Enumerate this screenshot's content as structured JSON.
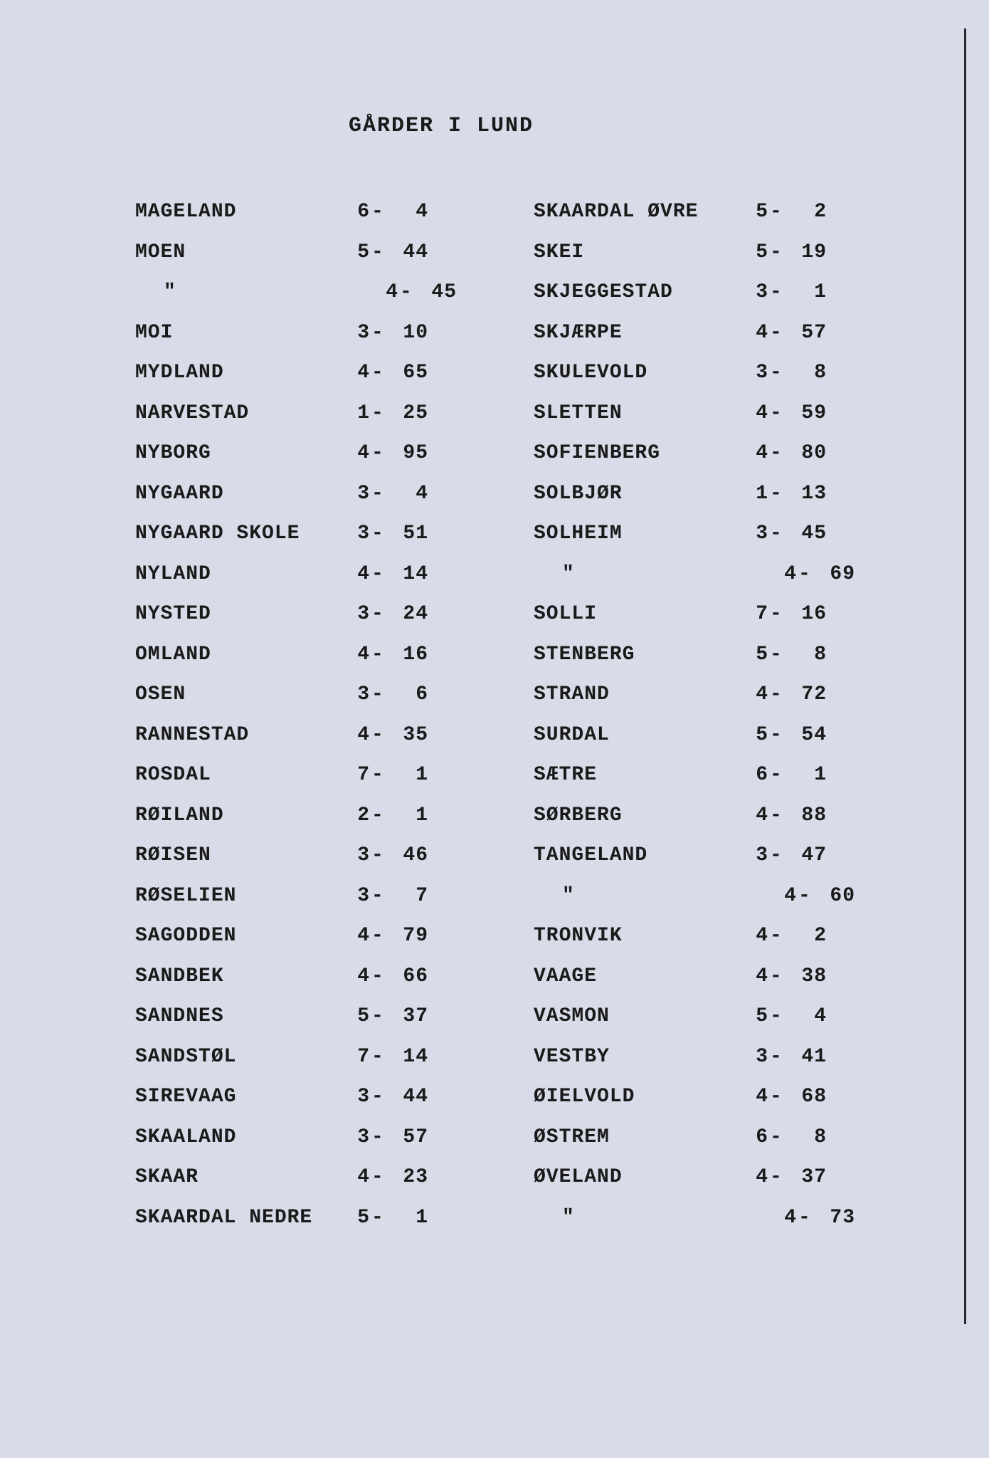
{
  "title": "GÅRDER I LUND",
  "background_color": "#d8dce8",
  "text_color": "#1a1a1a",
  "font_family": "Courier New",
  "font_size_body": 28,
  "font_size_title": 30,
  "left": [
    {
      "name": "MAGELAND",
      "a": "6",
      "b": "4"
    },
    {
      "name": "MOEN",
      "a": "5",
      "b": "44"
    },
    {
      "name": "\"",
      "a": "4",
      "b": "45"
    },
    {
      "name": "MOI",
      "a": "3",
      "b": "10"
    },
    {
      "name": "MYDLAND",
      "a": "4",
      "b": "65"
    },
    {
      "name": "NARVESTAD",
      "a": "1",
      "b": "25"
    },
    {
      "name": "NYBORG",
      "a": "4",
      "b": "95"
    },
    {
      "name": "NYGAARD",
      "a": "3",
      "b": "4"
    },
    {
      "name": "NYGAARD SKOLE",
      "a": "3",
      "b": "51"
    },
    {
      "name": "NYLAND",
      "a": "4",
      "b": "14"
    },
    {
      "name": "NYSTED",
      "a": "3",
      "b": "24"
    },
    {
      "name": "OMLAND",
      "a": "4",
      "b": "16"
    },
    {
      "name": "OSEN",
      "a": "3",
      "b": "6"
    },
    {
      "name": "RANNESTAD",
      "a": "4",
      "b": "35"
    },
    {
      "name": "ROSDAL",
      "a": "7",
      "b": "1"
    },
    {
      "name": "RØILAND",
      "a": "2",
      "b": "1"
    },
    {
      "name": "RØISEN",
      "a": "3",
      "b": "46"
    },
    {
      "name": "RØSELIEN",
      "a": "3",
      "b": "7"
    },
    {
      "name": "SAGODDEN",
      "a": "4",
      "b": "79"
    },
    {
      "name": "SANDBEK",
      "a": "4",
      "b": "66"
    },
    {
      "name": "SANDNES",
      "a": "5",
      "b": "37"
    },
    {
      "name": "SANDSTØL",
      "a": "7",
      "b": "14"
    },
    {
      "name": "SIREVAAG",
      "a": "3",
      "b": "44"
    },
    {
      "name": "SKAALAND",
      "a": "3",
      "b": "57"
    },
    {
      "name": "SKAAR",
      "a": "4",
      "b": "23"
    },
    {
      "name": "SKAARDAL NEDRE",
      "a": "5",
      "b": "1"
    }
  ],
  "right": [
    {
      "name": "SKAARDAL ØVRE",
      "a": "5",
      "b": "2"
    },
    {
      "name": "SKEI",
      "a": "5",
      "b": "19"
    },
    {
      "name": "SKJEGGESTAD",
      "a": "3",
      "b": "1"
    },
    {
      "name": "SKJÆRPE",
      "a": "4",
      "b": "57"
    },
    {
      "name": "SKULEVOLD",
      "a": "3",
      "b": "8"
    },
    {
      "name": "SLETTEN",
      "a": "4",
      "b": "59"
    },
    {
      "name": "SOFIENBERG",
      "a": "4",
      "b": "80"
    },
    {
      "name": "SOLBJØR",
      "a": "1",
      "b": "13"
    },
    {
      "name": "SOLHEIM",
      "a": "3",
      "b": "45"
    },
    {
      "name": "\"",
      "a": "4",
      "b": "69"
    },
    {
      "name": "SOLLI",
      "a": "7",
      "b": "16"
    },
    {
      "name": "STENBERG",
      "a": "5",
      "b": "8"
    },
    {
      "name": "STRAND",
      "a": "4",
      "b": "72"
    },
    {
      "name": "SURDAL",
      "a": "5",
      "b": "54"
    },
    {
      "name": "SÆTRE",
      "a": "6",
      "b": "1"
    },
    {
      "name": "SØRBERG",
      "a": "4",
      "b": "88"
    },
    {
      "name": "TANGELAND",
      "a": "3",
      "b": "47"
    },
    {
      "name": "\"",
      "a": "4",
      "b": "60"
    },
    {
      "name": "TRONVIK",
      "a": "4",
      "b": "2"
    },
    {
      "name": "VAAGE",
      "a": "4",
      "b": "38"
    },
    {
      "name": "VASMON",
      "a": "5",
      "b": "4"
    },
    {
      "name": "VESTBY",
      "a": "3",
      "b": "41"
    },
    {
      "name": "ØIELVOLD",
      "a": "4",
      "b": "68"
    },
    {
      "name": "ØSTREM",
      "a": "6",
      "b": "8"
    },
    {
      "name": "ØVELAND",
      "a": "4",
      "b": "37"
    },
    {
      "name": "\"",
      "a": "4",
      "b": "73"
    }
  ]
}
